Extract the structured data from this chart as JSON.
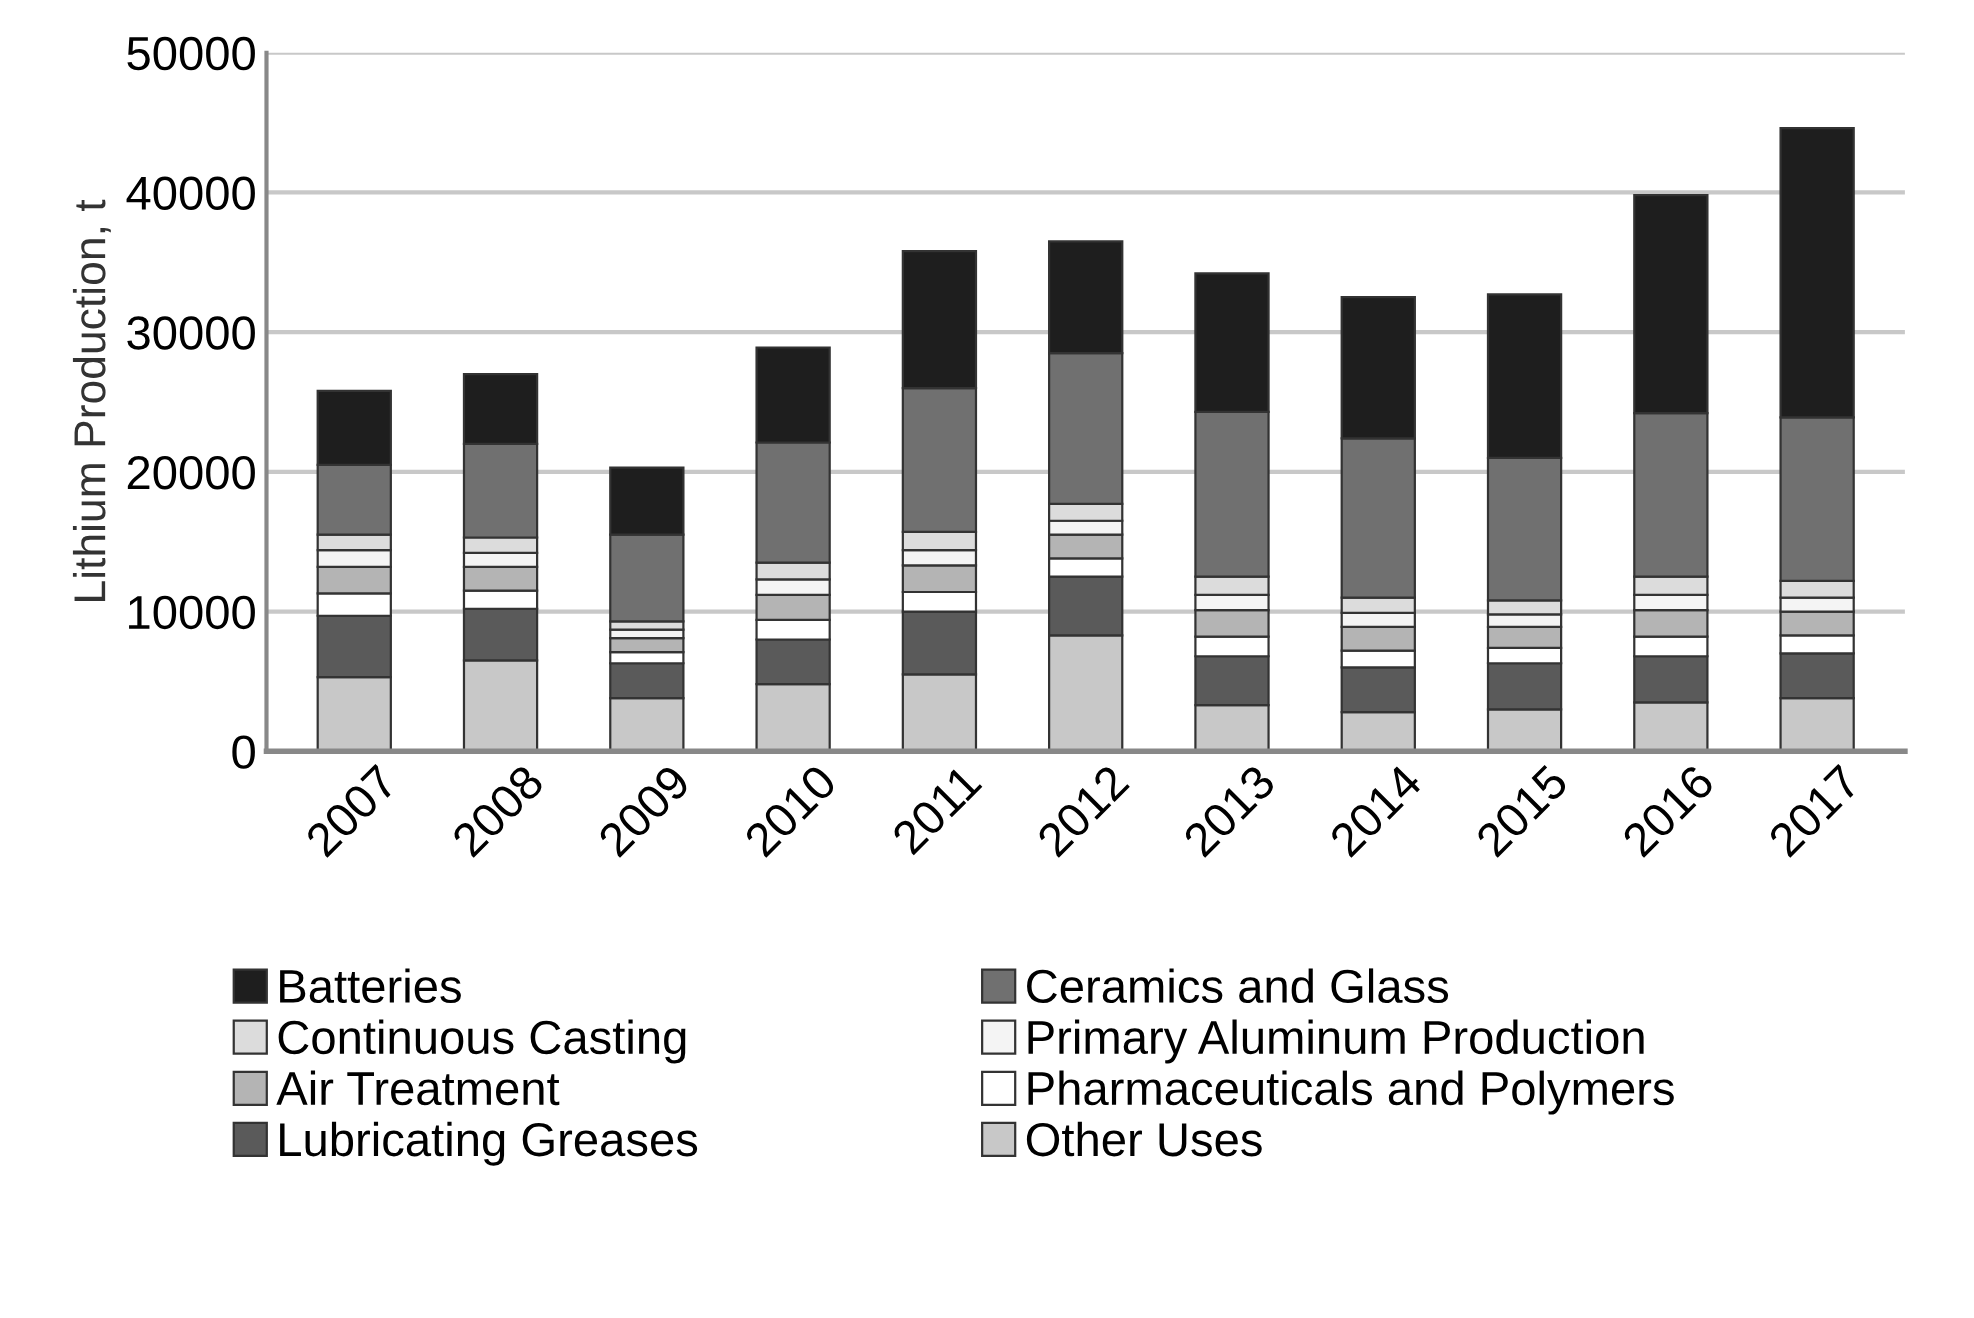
{
  "chart_data": {
    "type": "bar",
    "stacked": true,
    "ylabel": "Lithium Production, t",
    "categories": [
      "2007",
      "2008",
      "2009",
      "2010",
      "2011",
      "2012",
      "2013",
      "2014",
      "2015",
      "2016",
      "2017"
    ],
    "ylim": [
      0,
      50000
    ],
    "yticks": [
      0,
      10000,
      20000,
      30000,
      40000,
      50000
    ],
    "grid": "y",
    "legend": "bottom",
    "series": [
      {
        "name": "Other Uses",
        "color": "#c8c8c8",
        "values": [
          5300,
          6500,
          3800,
          4800,
          5500,
          8300,
          3300,
          2800,
          3000,
          3500,
          3800
        ]
      },
      {
        "name": "Lubricating Greases",
        "color": "#5a5a5a",
        "values": [
          4400,
          3700,
          2500,
          3200,
          4500,
          4200,
          3500,
          3200,
          3300,
          3300,
          3200
        ]
      },
      {
        "name": "Pharmaceuticals and Polymers",
        "color": "#ffffff",
        "values": [
          1600,
          1300,
          800,
          1400,
          1400,
          1300,
          1400,
          1200,
          1100,
          1400,
          1300
        ]
      },
      {
        "name": "Air Treatment",
        "color": "#b4b4b4",
        "values": [
          1900,
          1700,
          1000,
          1800,
          1900,
          1700,
          1900,
          1700,
          1500,
          1900,
          1700
        ]
      },
      {
        "name": "Primary Aluminum Production",
        "color": "#f4f4f4",
        "values": [
          1200,
          1000,
          600,
          1100,
          1100,
          1000,
          1100,
          1000,
          900,
          1100,
          1000
        ]
      },
      {
        "name": "Continuous Casting",
        "color": "#dcdcdc",
        "values": [
          1100,
          1100,
          600,
          1200,
          1300,
          1200,
          1300,
          1100,
          1000,
          1300,
          1200
        ]
      },
      {
        "name": "Ceramics and Glass",
        "color": "#707070",
        "values": [
          5000,
          6700,
          6200,
          8600,
          10300,
          10800,
          11800,
          11400,
          10200,
          11700,
          11700
        ]
      },
      {
        "name": "Batteries",
        "color": "#1e1e1e",
        "values": [
          5300,
          5000,
          4800,
          6800,
          9800,
          8000,
          9900,
          10100,
          11700,
          15600,
          20700
        ]
      }
    ]
  }
}
